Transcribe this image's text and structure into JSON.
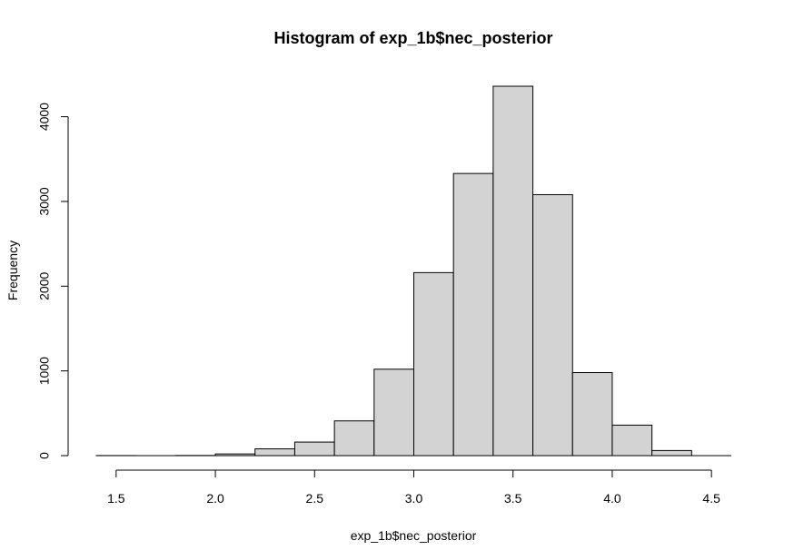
{
  "chart_data": {
    "type": "bar",
    "subtype": "histogram",
    "title": "Histogram of exp_1b$nec_posterior",
    "xlabel": "exp_1b$nec_posterior",
    "ylabel": "Frequency",
    "bins": [
      {
        "x0": 1.4,
        "x1": 1.6,
        "value": 1
      },
      {
        "x0": 1.6,
        "x1": 1.8,
        "value": 0
      },
      {
        "x0": 1.8,
        "x1": 2.0,
        "value": 2
      },
      {
        "x0": 2.0,
        "x1": 2.2,
        "value": 20
      },
      {
        "x0": 2.2,
        "x1": 2.4,
        "value": 80
      },
      {
        "x0": 2.4,
        "x1": 2.6,
        "value": 160
      },
      {
        "x0": 2.6,
        "x1": 2.8,
        "value": 410
      },
      {
        "x0": 2.8,
        "x1": 3.0,
        "value": 1020
      },
      {
        "x0": 3.0,
        "x1": 3.2,
        "value": 2160
      },
      {
        "x0": 3.2,
        "x1": 3.4,
        "value": 3330
      },
      {
        "x0": 3.4,
        "x1": 3.6,
        "value": 4360
      },
      {
        "x0": 3.6,
        "x1": 3.8,
        "value": 3080
      },
      {
        "x0": 3.8,
        "x1": 4.0,
        "value": 980
      },
      {
        "x0": 4.0,
        "x1": 4.2,
        "value": 360
      },
      {
        "x0": 4.2,
        "x1": 4.4,
        "value": 60
      }
    ],
    "xlim": [
      1.4,
      4.6
    ],
    "ylim": [
      0,
      4360
    ],
    "x_ticks": [
      1.5,
      2.0,
      2.5,
      3.0,
      3.5,
      4.0,
      4.5
    ],
    "x_tick_labels": [
      "1.5",
      "2.0",
      "2.5",
      "3.0",
      "3.5",
      "4.0",
      "4.5"
    ],
    "y_ticks": [
      0,
      1000,
      2000,
      3000,
      4000
    ],
    "y_tick_labels": [
      "0",
      "1000",
      "2000",
      "3000",
      "4000"
    ],
    "bar_fill": "#d3d3d3",
    "bar_stroke": "#000000",
    "grid": false,
    "legend": "none"
  }
}
